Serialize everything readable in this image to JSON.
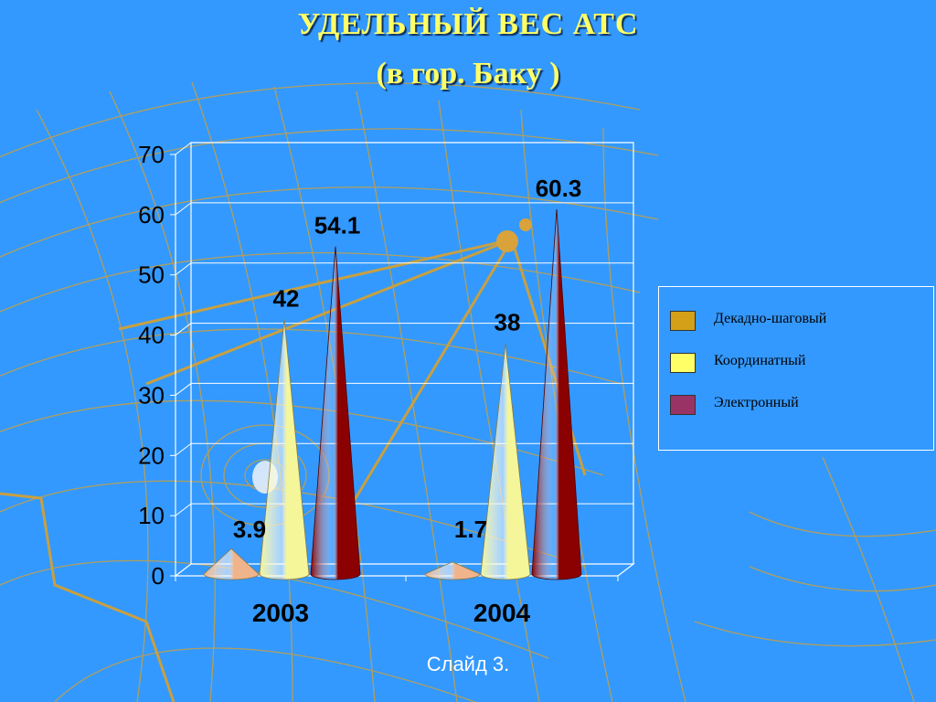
{
  "title_line1": "УДЕЛЬНЫЙ  ВЕС  АТС",
  "title_line2": "(в гор. Баку )",
  "footer": "Слайд  3.",
  "chart_data": {
    "type": "bar",
    "categories": [
      "2003",
      "2004"
    ],
    "series": [
      {
        "name": "Декадно-шаговый",
        "values": [
          3.9,
          1.7
        ],
        "color": "#f0b48c"
      },
      {
        "name": "Координатный",
        "values": [
          42,
          38
        ],
        "color": "#f5f59a"
      },
      {
        "name": "Электронный",
        "values": [
          54.1,
          60.3
        ],
        "color": "#8b0000"
      }
    ],
    "data_labels": [
      [
        "3.9",
        "1.7"
      ],
      [
        "42",
        "38"
      ],
      [
        "54.1",
        "60.3"
      ]
    ],
    "y_ticks": [
      "0",
      "10",
      "20",
      "30",
      "40",
      "50",
      "60",
      "70"
    ],
    "ylim": [
      0,
      70
    ],
    "grid": true,
    "legend_position": "right",
    "legend_swatch_colors": [
      "#d4a017",
      "#ffff66",
      "#993366"
    ]
  }
}
